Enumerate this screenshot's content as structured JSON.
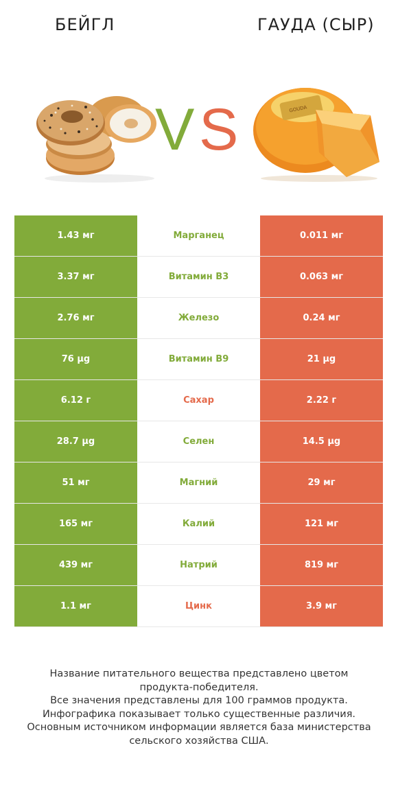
{
  "header": {
    "left_title": "БЕЙГЛ",
    "right_title": "ГАУДА (СЫР)",
    "vs_left": "V",
    "vs_right": "S"
  },
  "colors": {
    "left_food": "#82ab3a",
    "right_food": "#e46a4b"
  },
  "rows": [
    {
      "left": "1.43 мг",
      "nutrient": "Марганец",
      "right": "0.011 мг",
      "winner": "left"
    },
    {
      "left": "3.37 мг",
      "nutrient": "Витамин B3",
      "right": "0.063 мг",
      "winner": "left"
    },
    {
      "left": "2.76 мг",
      "nutrient": "Железо",
      "right": "0.24 мг",
      "winner": "left"
    },
    {
      "left": "76 µg",
      "nutrient": "Витамин B9",
      "right": "21 µg",
      "winner": "left"
    },
    {
      "left": "6.12 г",
      "nutrient": "Сахар",
      "right": "2.22 г",
      "winner": "right"
    },
    {
      "left": "28.7 µg",
      "nutrient": "Селен",
      "right": "14.5 µg",
      "winner": "left"
    },
    {
      "left": "51 мг",
      "nutrient": "Магний",
      "right": "29 мг",
      "winner": "left"
    },
    {
      "left": "165 мг",
      "nutrient": "Калий",
      "right": "121 мг",
      "winner": "left"
    },
    {
      "left": "439 мг",
      "nutrient": "Натрий",
      "right": "819 мг",
      "winner": "left"
    },
    {
      "left": "1.1 мг",
      "nutrient": "Цинк",
      "right": "3.9 мг",
      "winner": "right"
    }
  ],
  "footer": {
    "lines": [
      "Название питательного вещества представлено цветом",
      "продукта-победителя.",
      "Все значения представлены для 100 граммов продукта.",
      "Инфографика показывает только существенные различия.",
      "Основным источником информации является база министерства",
      "сельского хозяйства США."
    ]
  }
}
